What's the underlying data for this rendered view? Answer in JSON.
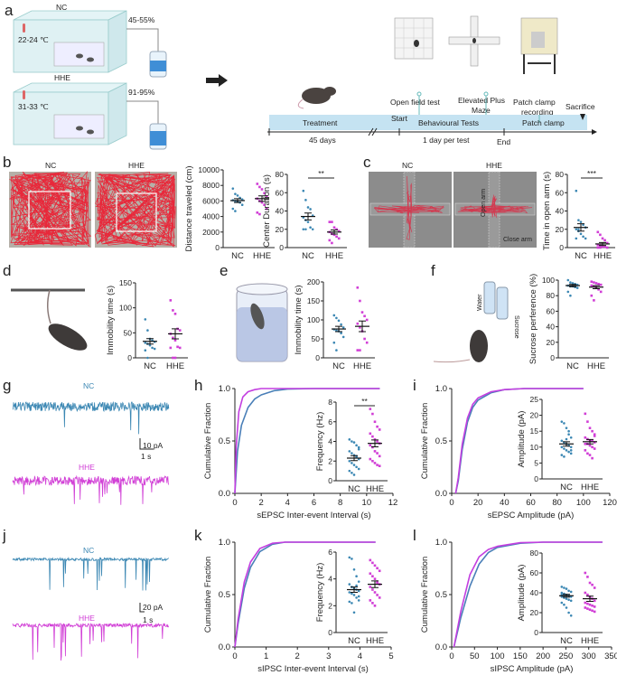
{
  "colors": {
    "NC": "#3b87b3",
    "HHE": "#d13fd6",
    "track": "#e8283a"
  },
  "panel_labels": [
    "a",
    "b",
    "c",
    "d",
    "e",
    "f",
    "g",
    "h",
    "i",
    "j",
    "k",
    "l"
  ],
  "panel_a": {
    "nc_label": "NC",
    "nc_temp": "22-24 ℃",
    "nc_humidity": "45-55%",
    "hhe_label": "HHE",
    "hhe_temp": "31-33 ℃",
    "hhe_humidity": "91-95%",
    "tests": [
      "Open field test",
      "Elevated Plus",
      "Maze",
      "Patch clamp",
      "recording"
    ],
    "timeline": {
      "treatment": "Treatment",
      "treatment_duration": "45 days",
      "start": "Start",
      "behavioural": "Behavioural Tests",
      "per_test": "1 day per test",
      "end": "End",
      "patch": "Patch clamp",
      "sacrifice": "Sacrifice"
    }
  },
  "panel_b": {
    "nc": "NC",
    "hhe": "HHE"
  },
  "panel_c": {
    "nc": "NC",
    "hhe": "HHE",
    "open_arm": "Open arm",
    "close_arm": "Close arm"
  },
  "panel_f": {
    "water": "Water",
    "sucrose": "Sucrose"
  },
  "traces": {
    "g": {
      "nc": "NC",
      "hhe": "HHE",
      "scale_y": "10 pA",
      "scale_x": "1 s"
    },
    "j": {
      "nc": "NC",
      "hhe": "HHE",
      "scale_y": "20 pA",
      "scale_x": "1 s"
    }
  },
  "chart_data": [
    {
      "type": "scatter",
      "panel": "b",
      "ylabel": "Distance traveled (cm)",
      "categories": [
        "NC",
        "HHE"
      ],
      "ylim": [
        0,
        10000
      ],
      "yticks": [
        0,
        2000,
        4000,
        6000,
        8000,
        10000
      ],
      "groups": [
        {
          "values": [
            7600,
            6900,
            6700,
            6400,
            6200,
            6100,
            6000,
            5900,
            5800,
            5500,
            5000,
            4700
          ],
          "mean": 6050,
          "sem": 250
        },
        {
          "values": [
            8200,
            7800,
            7500,
            7000,
            6600,
            6300,
            6000,
            5800,
            5500,
            5000,
            4500,
            4300
          ],
          "mean": 6300,
          "sem": 360
        }
      ],
      "sig": ""
    },
    {
      "type": "scatter",
      "panel": "b",
      "ylabel": "Center Duration (s)",
      "categories": [
        "NC",
        "HHE"
      ],
      "ylim": [
        0,
        80
      ],
      "yticks": [
        0,
        20,
        40,
        60,
        80
      ],
      "groups": [
        {
          "values": [
            62,
            52,
            44,
            42,
            35,
            33,
            30,
            28,
            22,
            20,
            20,
            20
          ],
          "mean": 34,
          "sem": 3.8
        },
        {
          "values": [
            28,
            28,
            22,
            20,
            18,
            17,
            15,
            14,
            12,
            10,
            8,
            5
          ],
          "mean": 17,
          "sem": 2.2
        }
      ],
      "sig": "**"
    },
    {
      "type": "scatter",
      "panel": "c",
      "ylabel": "Time in open arm (s)",
      "categories": [
        "NC",
        "HHE"
      ],
      "ylim": [
        0,
        80
      ],
      "yticks": [
        0,
        20,
        40,
        60,
        80
      ],
      "groups": [
        {
          "values": [
            62,
            30,
            28,
            25,
            22,
            20,
            18,
            15,
            12,
            10,
            10,
            20
          ],
          "mean": 22,
          "sem": 4
        },
        {
          "values": [
            17,
            14,
            10,
            8,
            5,
            3,
            2,
            1,
            1,
            0,
            0,
            0
          ],
          "mean": 4,
          "sem": 1.6
        }
      ],
      "sig": "***"
    },
    {
      "type": "scatter",
      "panel": "d",
      "ylabel": "Immobility time (s)",
      "categories": [
        "NC",
        "HHE"
      ],
      "ylim": [
        0,
        150
      ],
      "yticks": [
        0,
        50,
        100,
        150
      ],
      "groups": [
        {
          "values": [
            77,
            55,
            38,
            35,
            32,
            30,
            28,
            25,
            20,
            18,
            15,
            0
          ],
          "mean": 33,
          "sem": 5.5
        },
        {
          "values": [
            115,
            95,
            88,
            58,
            55,
            48,
            40,
            35,
            22,
            20,
            20,
            0,
            0
          ],
          "mean": 48,
          "sem": 10
        }
      ],
      "sig": ""
    },
    {
      "type": "scatter",
      "panel": "e",
      "ylabel": "Immobility time (s)",
      "categories": [
        "NC",
        "HHE"
      ],
      "ylim": [
        0,
        200
      ],
      "yticks": [
        0,
        50,
        100,
        150,
        200
      ],
      "groups": [
        {
          "values": [
            112,
            105,
            98,
            88,
            80,
            75,
            72,
            70,
            65,
            55,
            40,
            20
          ],
          "mean": 76,
          "sem": 7
        },
        {
          "values": [
            185,
            150,
            120,
            110,
            100,
            90,
            80,
            70,
            50,
            40,
            20,
            20
          ],
          "mean": 83,
          "sem": 14
        }
      ],
      "sig": ""
    },
    {
      "type": "scatter",
      "panel": "f",
      "ylabel": "Sucrose perference (%)",
      "categories": [
        "NC",
        "HHE"
      ],
      "ylim": [
        0,
        100
      ],
      "yticks": [
        0,
        20,
        40,
        60,
        80,
        100
      ],
      "groups": [
        {
          "values": [
            100,
            97,
            96,
            95,
            94,
            93,
            92,
            92,
            91,
            90,
            85,
            80
          ],
          "mean": 93,
          "sem": 1.5
        },
        {
          "values": [
            98,
            97,
            96,
            95,
            94,
            93,
            92,
            90,
            88,
            85,
            80,
            74
          ],
          "mean": 91,
          "sem": 2
        }
      ],
      "sig": ""
    },
    {
      "type": "scatter",
      "panel": "h-inset",
      "ylabel": "Frequency (Hz)",
      "categories": [
        "NC",
        "HHE"
      ],
      "ylim": [
        0,
        8
      ],
      "yticks": [
        0,
        2,
        4,
        6,
        8
      ],
      "groups": [
        {
          "values": [
            4.2,
            4.0,
            3.9,
            3.6,
            3.4,
            3.0,
            2.8,
            2.6,
            2.4,
            2.2,
            2.0,
            1.8,
            1.6,
            1.4,
            1.2,
            1.0,
            0.8,
            0.6,
            2.5,
            3.2
          ],
          "mean": 2.3,
          "sem": 0.25
        },
        {
          "values": [
            7.3,
            6.8,
            6.0,
            5.5,
            5.2,
            4.8,
            4.5,
            4.2,
            4.0,
            3.8,
            3.6,
            3.4,
            3.0,
            2.8,
            2.5,
            2.2,
            2.0,
            1.8,
            1.6,
            1.5
          ],
          "mean": 3.8,
          "sem": 0.35
        }
      ],
      "sig": "**"
    },
    {
      "type": "scatter",
      "panel": "i-inset",
      "ylabel": "Amplitude (pA)",
      "categories": [
        "NC",
        "HHE"
      ],
      "ylim": [
        0,
        25
      ],
      "yticks": [
        0,
        5,
        10,
        15,
        20,
        25
      ],
      "groups": [
        {
          "values": [
            18,
            17.5,
            16,
            15,
            13,
            12,
            11.5,
            11,
            10.5,
            10,
            10,
            9.5,
            9,
            8.5,
            8,
            7.5,
            7,
            12.5,
            14,
            9
          ],
          "mean": 11,
          "sem": 0.7
        },
        {
          "values": [
            20.5,
            18,
            16,
            15,
            14,
            13,
            12.5,
            12,
            12,
            11.5,
            11,
            11,
            10.5,
            10,
            9.5,
            9,
            8,
            7.5,
            6.5,
            13.5
          ],
          "mean": 11.7,
          "sem": 0.7
        }
      ],
      "sig": ""
    },
    {
      "type": "scatter",
      "panel": "k-inset",
      "ylabel": "Frequency (Hz)",
      "categories": [
        "NC",
        "HHE"
      ],
      "ylim": [
        0,
        6
      ],
      "yticks": [
        0,
        2,
        4,
        6
      ],
      "groups": [
        {
          "values": [
            5.6,
            5.5,
            4.7,
            4.2,
            3.8,
            3.6,
            3.4,
            3.3,
            3.2,
            3.1,
            3.0,
            2.9,
            2.8,
            2.6,
            2.4,
            2.3,
            2.2,
            1.5,
            3.5,
            2.7
          ],
          "mean": 3.2,
          "sem": 0.2
        },
        {
          "values": [
            5.4,
            5.2,
            5.0,
            4.8,
            4.6,
            4.4,
            4.2,
            4.0,
            3.8,
            3.6,
            3.4,
            3.2,
            3.0,
            2.8,
            2.6,
            2.4,
            2.2,
            2.0,
            3.7
          ],
          "mean": 3.6,
          "sem": 0.25
        }
      ],
      "sig": ""
    },
    {
      "type": "scatter",
      "panel": "l-inset",
      "ylabel": "Amplitude (pA)",
      "categories": [
        "NC",
        "HHE"
      ],
      "ylim": [
        0,
        80
      ],
      "yticks": [
        0,
        20,
        40,
        60,
        80
      ],
      "groups": [
        {
          "values": [
            46,
            45,
            44,
            42,
            41,
            40,
            39,
            38,
            37,
            36,
            36,
            35,
            34,
            33,
            32,
            30,
            28,
            25,
            20,
            17,
            38,
            37
          ],
          "mean": 37,
          "sem": 1.4
        },
        {
          "values": [
            60,
            56,
            50,
            48,
            45,
            40,
            38,
            36,
            34,
            32,
            30,
            29,
            28,
            27,
            26,
            25,
            24,
            23,
            22,
            21
          ],
          "mean": 34,
          "sem": 2.6
        }
      ],
      "sig": ""
    },
    {
      "type": "line",
      "panel": "h",
      "xlabel": "sEPSC Inter-event Interval (s)",
      "ylabel": "Cumulative Fraction",
      "xlim": [
        0,
        12
      ],
      "xticks": [
        0,
        2,
        4,
        6,
        8,
        10,
        12
      ],
      "ylim": [
        0,
        1
      ],
      "yticks": [
        "0.0",
        "0.5",
        "1.0"
      ],
      "series": [
        {
          "name": "NC",
          "points": [
            [
              0,
              0
            ],
            [
              0.2,
              0.4
            ],
            [
              0.5,
              0.65
            ],
            [
              1,
              0.82
            ],
            [
              1.5,
              0.9
            ],
            [
              2,
              0.94
            ],
            [
              3,
              0.98
            ],
            [
              4,
              0.995
            ],
            [
              6,
              1
            ],
            [
              11,
              1
            ]
          ]
        },
        {
          "name": "HHE",
          "points": [
            [
              0,
              0
            ],
            [
              0.1,
              0.45
            ],
            [
              0.3,
              0.78
            ],
            [
              0.6,
              0.92
            ],
            [
              1,
              0.97
            ],
            [
              1.5,
              0.99
            ],
            [
              2,
              1
            ],
            [
              11,
              1
            ]
          ]
        }
      ]
    },
    {
      "type": "line",
      "panel": "i",
      "xlabel": "sEPSC Amplitude (pA)",
      "ylabel": "Cumulative Fraction",
      "xlim": [
        0,
        120
      ],
      "xticks": [
        0,
        20,
        40,
        60,
        80,
        100,
        120
      ],
      "ylim": [
        0,
        1
      ],
      "yticks": [
        "0.0",
        "0.5",
        "1.0"
      ],
      "series": [
        {
          "name": "NC",
          "points": [
            [
              3,
              0
            ],
            [
              5,
              0.12
            ],
            [
              8,
              0.42
            ],
            [
              12,
              0.68
            ],
            [
              16,
              0.82
            ],
            [
              20,
              0.89
            ],
            [
              30,
              0.96
            ],
            [
              40,
              0.99
            ],
            [
              55,
              1
            ],
            [
              100,
              1
            ]
          ]
        },
        {
          "name": "HHE",
          "points": [
            [
              3,
              0
            ],
            [
              5,
              0.15
            ],
            [
              8,
              0.47
            ],
            [
              12,
              0.72
            ],
            [
              16,
              0.85
            ],
            [
              20,
              0.91
            ],
            [
              30,
              0.97
            ],
            [
              40,
              0.99
            ],
            [
              55,
              1
            ],
            [
              100,
              1
            ]
          ]
        }
      ]
    },
    {
      "type": "line",
      "panel": "k",
      "xlabel": "sIPSC Inter-event Interval (s)",
      "ylabel": "Cumulative Fraction",
      "xlim": [
        0,
        5
      ],
      "xticks": [
        0,
        1,
        2,
        3,
        4,
        5
      ],
      "ylim": [
        0,
        1
      ],
      "yticks": [
        "0.0",
        "0.5",
        "1.0"
      ],
      "series": [
        {
          "name": "NC",
          "points": [
            [
              0,
              0
            ],
            [
              0.1,
              0.22
            ],
            [
              0.3,
              0.56
            ],
            [
              0.5,
              0.76
            ],
            [
              0.8,
              0.91
            ],
            [
              1.2,
              0.98
            ],
            [
              1.6,
              1
            ],
            [
              4.5,
              1
            ]
          ]
        },
        {
          "name": "HHE",
          "points": [
            [
              0,
              0
            ],
            [
              0.1,
              0.26
            ],
            [
              0.3,
              0.62
            ],
            [
              0.5,
              0.81
            ],
            [
              0.8,
              0.94
            ],
            [
              1.2,
              0.99
            ],
            [
              1.6,
              1
            ],
            [
              4.5,
              1
            ]
          ]
        }
      ]
    },
    {
      "type": "line",
      "panel": "l",
      "xlabel": "sIPSC Amplitude (pA)",
      "ylabel": "Cumulative Fraction",
      "xlim": [
        0,
        350
      ],
      "xticks": [
        0,
        50,
        100,
        150,
        200,
        250,
        300,
        350
      ],
      "ylim": [
        0,
        1
      ],
      "yticks": [
        "0.0",
        "0.5",
        "1.0"
      ],
      "series": [
        {
          "name": "NC",
          "points": [
            [
              5,
              0
            ],
            [
              20,
              0.28
            ],
            [
              40,
              0.58
            ],
            [
              60,
              0.79
            ],
            [
              80,
              0.9
            ],
            [
              100,
              0.95
            ],
            [
              150,
              0.99
            ],
            [
              200,
              1
            ],
            [
              330,
              1
            ]
          ]
        },
        {
          "name": "HHE",
          "points": [
            [
              5,
              0
            ],
            [
              20,
              0.34
            ],
            [
              40,
              0.69
            ],
            [
              60,
              0.86
            ],
            [
              80,
              0.93
            ],
            [
              100,
              0.96
            ],
            [
              150,
              0.995
            ],
            [
              200,
              1
            ],
            [
              330,
              1
            ]
          ]
        }
      ]
    }
  ]
}
